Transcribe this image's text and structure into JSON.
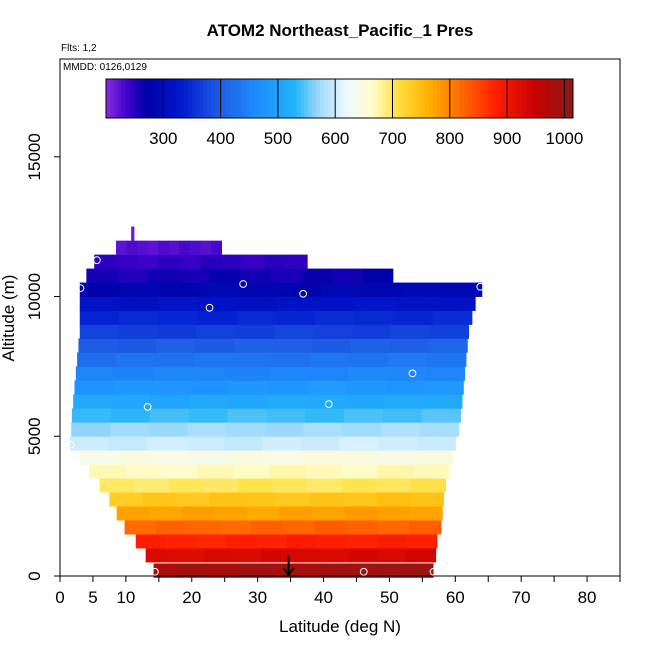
{
  "chart_data": {
    "type": "heatmap",
    "title": "ATOM2 Northeast_Pacific_1 Pres",
    "flights_label": "Flts: 1,2",
    "date_label": "MMDD: 0126,0129",
    "xlabel": "Latitude (deg N)",
    "ylabel": "Altitude (m)",
    "xlim": [
      0,
      85
    ],
    "ylim": [
      0,
      18500
    ],
    "x_ticks": [
      0,
      5,
      10,
      20,
      30,
      40,
      50,
      60,
      70,
      80
    ],
    "x_tick_labels": [
      "0",
      "5",
      "10",
      "20",
      "30",
      "40",
      "50",
      "60",
      "70",
      "80"
    ],
    "x_minor_ticks": [
      15,
      25,
      35,
      45,
      55,
      65,
      75,
      85
    ],
    "y_ticks": [
      0,
      5000,
      10000,
      15000
    ],
    "y_tick_labels": [
      "0",
      "5000",
      "10000",
      "15000"
    ],
    "colorbar": {
      "min": 200,
      "max": 1015,
      "ticks": [
        300,
        400,
        500,
        600,
        700,
        800,
        900,
        1000
      ],
      "tick_labels": [
        "300",
        "400",
        "500",
        "600",
        "700",
        "800",
        "900",
        "1000"
      ],
      "stops": [
        [
          200,
          "#8a2be2"
        ],
        [
          240,
          "#3a00c8"
        ],
        [
          270,
          "#0000a8"
        ],
        [
          330,
          "#0018cc"
        ],
        [
          400,
          "#1e5fe6"
        ],
        [
          470,
          "#1e90ff"
        ],
        [
          530,
          "#22b4f8"
        ],
        [
          570,
          "#9ad8fb"
        ],
        [
          620,
          "#f0faff"
        ],
        [
          665,
          "#fffccc"
        ],
        [
          705,
          "#ffe34a"
        ],
        [
          760,
          "#ffb400"
        ],
        [
          820,
          "#ff6a00"
        ],
        [
          880,
          "#ff1e00"
        ],
        [
          950,
          "#c80000"
        ],
        [
          1015,
          "#8b1a1a"
        ]
      ]
    },
    "altitude_bands": [
      {
        "alt": 200,
        "lat_min": 14.2,
        "lat_max": 56.6,
        "pres": 990
      },
      {
        "alt": 750,
        "lat_min": 13.0,
        "lat_max": 57.0,
        "pres": 930
      },
      {
        "alt": 1250,
        "lat_min": 11.5,
        "lat_max": 57.2,
        "pres": 880
      },
      {
        "alt": 1750,
        "lat_min": 9.8,
        "lat_max": 57.8,
        "pres": 825
      },
      {
        "alt": 2250,
        "lat_min": 8.6,
        "lat_max": 58.0,
        "pres": 775
      },
      {
        "alt": 2750,
        "lat_min": 7.5,
        "lat_max": 58.2,
        "pres": 740
      },
      {
        "alt": 3250,
        "lat_min": 6.0,
        "lat_max": 58.5,
        "pres": 700
      },
      {
        "alt": 3750,
        "lat_min": 4.4,
        "lat_max": 59.0,
        "pres": 670
      },
      {
        "alt": 4250,
        "lat_min": 3.0,
        "lat_max": 59.6,
        "pres": 645
      },
      {
        "alt": 4750,
        "lat_min": 1.5,
        "lat_max": 60.0,
        "pres": 600
      },
      {
        "alt": 5250,
        "lat_min": 1.7,
        "lat_max": 60.5,
        "pres": 575
      },
      {
        "alt": 5750,
        "lat_min": 1.8,
        "lat_max": 60.8,
        "pres": 540
      },
      {
        "alt": 6250,
        "lat_min": 2.0,
        "lat_max": 61.0,
        "pres": 510
      },
      {
        "alt": 6750,
        "lat_min": 2.2,
        "lat_max": 61.2,
        "pres": 480
      },
      {
        "alt": 7250,
        "lat_min": 2.4,
        "lat_max": 61.4,
        "pres": 455
      },
      {
        "alt": 7750,
        "lat_min": 2.6,
        "lat_max": 61.6,
        "pres": 430
      },
      {
        "alt": 8250,
        "lat_min": 2.8,
        "lat_max": 61.8,
        "pres": 400
      },
      {
        "alt": 8750,
        "lat_min": 3.0,
        "lat_max": 62.0,
        "pres": 370
      },
      {
        "alt": 9250,
        "lat_min": 3.0,
        "lat_max": 62.5,
        "pres": 345
      },
      {
        "alt": 9750,
        "lat_min": 3.0,
        "lat_max": 63.0,
        "pres": 318
      },
      {
        "alt": 10250,
        "lat_min": 3.0,
        "lat_max": 64.0,
        "pres": 285
      },
      {
        "alt": 10750,
        "lat_min": 4.0,
        "lat_max": 50.5,
        "pres": 262
      },
      {
        "alt": 11250,
        "lat_min": 5.2,
        "lat_max": 37.5,
        "pres": 245
      },
      {
        "alt": 11750,
        "lat_min": 8.5,
        "lat_max": 24.5,
        "pres": 228
      },
      {
        "alt": 12250,
        "lat_min": 10.8,
        "lat_max": 11.2,
        "pres": 215
      }
    ],
    "profile_points": [
      {
        "lat": 14.4,
        "alt": 150
      },
      {
        "lat": 46.1,
        "alt": 150
      },
      {
        "lat": 56.7,
        "alt": 150
      },
      {
        "lat": 1.6,
        "alt": 4700
      },
      {
        "lat": 13.3,
        "alt": 6050
      },
      {
        "lat": 40.8,
        "alt": 6150
      },
      {
        "lat": 53.5,
        "alt": 7250
      },
      {
        "lat": 22.7,
        "alt": 9600
      },
      {
        "lat": 36.9,
        "alt": 10100
      },
      {
        "lat": 3.1,
        "alt": 10300
      },
      {
        "lat": 27.8,
        "alt": 10450
      },
      {
        "lat": 63.8,
        "alt": 10350
      },
      {
        "lat": 5.6,
        "alt": 11300
      }
    ],
    "arrow_marker": {
      "lat": 34.7,
      "alt_top": 700,
      "alt_bottom": 0
    }
  }
}
